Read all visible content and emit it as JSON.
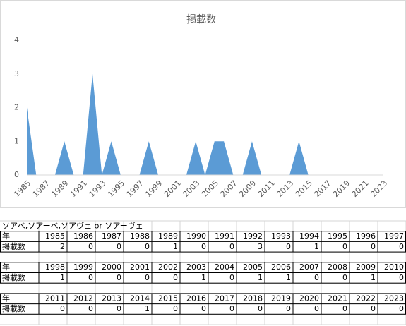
{
  "chart_data": {
    "type": "area",
    "title": "掲載数",
    "categories": [
      1985,
      null,
      1987,
      null,
      1989,
      null,
      1991,
      null,
      1993,
      null,
      1995,
      null,
      1997,
      null,
      1999,
      null,
      2001,
      null,
      2003,
      null,
      2005,
      null,
      2007,
      null,
      2009,
      null,
      2011,
      null,
      2013,
      null,
      2015,
      null,
      2017,
      null,
      2019,
      null,
      2021,
      null,
      2023
    ],
    "values": [
      2,
      0,
      0,
      0,
      1,
      0,
      0,
      3,
      0,
      1,
      0,
      0,
      0,
      1,
      0,
      0,
      0,
      0,
      1,
      0,
      1,
      1,
      0,
      0,
      1,
      0,
      0,
      0,
      0,
      1,
      0,
      0,
      0,
      0,
      0,
      0,
      0,
      0,
      0
    ],
    "color": "#5b9bd5",
    "ylim": [
      0,
      4
    ],
    "yticks": [
      0,
      1,
      2,
      3,
      4
    ],
    "grid": false
  },
  "table": {
    "title": "ソアベ,ソアーベ,ソアヴェ or ソアーヴェ",
    "blocks": [
      {
        "year_label": "年",
        "years": [
          1985,
          1986,
          1987,
          1988,
          1989,
          1990,
          1991,
          1992,
          1993,
          1994,
          1995,
          1996,
          1997
        ],
        "count_label": "掲載数",
        "counts": [
          2,
          0,
          0,
          0,
          1,
          0,
          0,
          3,
          0,
          1,
          0,
          0,
          0
        ]
      },
      {
        "year_label": "年",
        "years": [
          1998,
          1999,
          2000,
          2001,
          2002,
          2003,
          2004,
          2005,
          2006,
          2007,
          2008,
          2009,
          2010
        ],
        "count_label": "掲載数",
        "counts": [
          1,
          0,
          0,
          0,
          0,
          1,
          0,
          1,
          1,
          0,
          0,
          1,
          0
        ]
      },
      {
        "year_label": "年",
        "years": [
          2011,
          2012,
          2013,
          2014,
          2015,
          2016,
          2017,
          2018,
          2019,
          2020,
          2021,
          2022,
          2023
        ],
        "count_label": "掲載数",
        "counts": [
          0,
          0,
          0,
          1,
          0,
          0,
          0,
          0,
          0,
          0,
          0,
          0,
          0
        ]
      }
    ]
  }
}
